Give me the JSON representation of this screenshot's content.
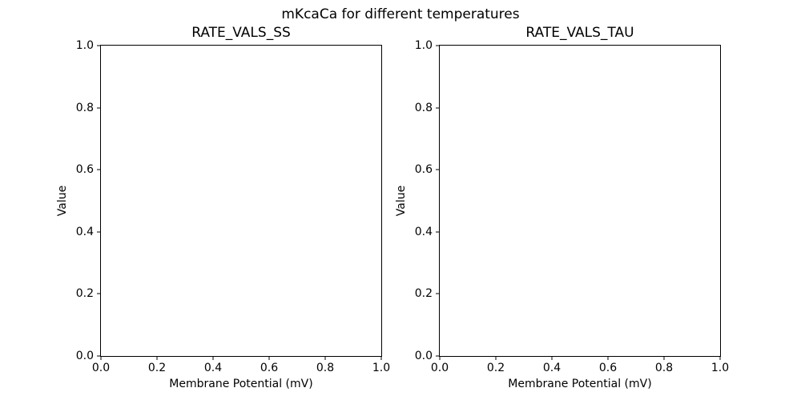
{
  "figure": {
    "suptitle": "mKcaCa for different temperatures",
    "background_color": "#ffffff",
    "text_color": "#000000",
    "spine_color": "#000000"
  },
  "chart_data": [
    {
      "type": "line",
      "title": "RATE_VALS_SS",
      "xlabel": "Membrane Potential (mV)",
      "ylabel": "Value",
      "xlim": [
        0.0,
        1.0
      ],
      "ylim": [
        0.0,
        1.0
      ],
      "xticks": [
        0.0,
        0.2,
        0.4,
        0.6,
        0.8,
        1.0
      ],
      "xtick_labels": [
        "0.0",
        "0.2",
        "0.4",
        "0.6",
        "0.8",
        "1.0"
      ],
      "yticks": [
        0.0,
        0.2,
        0.4,
        0.6,
        0.8,
        1.0
      ],
      "ytick_labels": [
        "0.0",
        "0.2",
        "0.4",
        "0.6",
        "0.8",
        "1.0"
      ],
      "grid": false,
      "legend": null,
      "series": []
    },
    {
      "type": "line",
      "title": "RATE_VALS_TAU",
      "xlabel": "Membrane Potential (mV)",
      "ylabel": "Value",
      "xlim": [
        0.0,
        1.0
      ],
      "ylim": [
        0.0,
        1.0
      ],
      "xticks": [
        0.0,
        0.2,
        0.4,
        0.6,
        0.8,
        1.0
      ],
      "xtick_labels": [
        "0.0",
        "0.2",
        "0.4",
        "0.6",
        "0.8",
        "1.0"
      ],
      "yticks": [
        0.0,
        0.2,
        0.4,
        0.6,
        0.8,
        1.0
      ],
      "ytick_labels": [
        "0.0",
        "0.2",
        "0.4",
        "0.6",
        "0.8",
        "1.0"
      ],
      "grid": false,
      "legend": null,
      "series": []
    }
  ]
}
